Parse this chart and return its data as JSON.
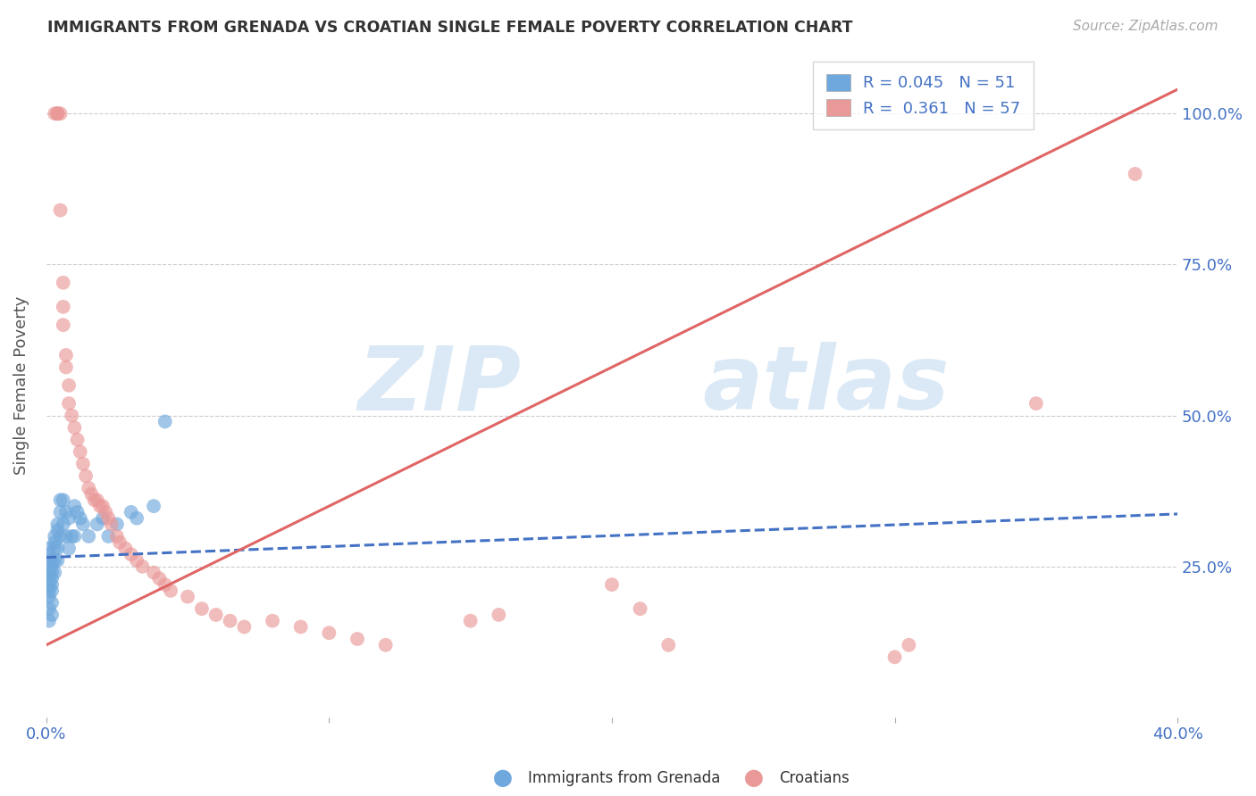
{
  "title": "IMMIGRANTS FROM GRENADA VS CROATIAN SINGLE FEMALE POVERTY CORRELATION CHART",
  "source": "Source: ZipAtlas.com",
  "ylabel": "Single Female Poverty",
  "xlim": [
    0.0,
    0.4
  ],
  "ylim": [
    0.0,
    1.1
  ],
  "color_blue": "#6fa8dc",
  "color_pink": "#ea9999",
  "color_blue_line": "#4472c4",
  "color_pink_line": "#e06666",
  "color_blue_text": "#4472c4",
  "watermark_zip": "ZIP",
  "watermark_atlas": "atlas",
  "blue_scatter_x": [
    0.001,
    0.001,
    0.001,
    0.001,
    0.001,
    0.001,
    0.001,
    0.001,
    0.001,
    0.001,
    0.002,
    0.002,
    0.002,
    0.002,
    0.002,
    0.002,
    0.002,
    0.002,
    0.003,
    0.003,
    0.003,
    0.003,
    0.003,
    0.004,
    0.004,
    0.004,
    0.004,
    0.005,
    0.005,
    0.005,
    0.006,
    0.006,
    0.007,
    0.007,
    0.008,
    0.008,
    0.009,
    0.01,
    0.01,
    0.011,
    0.012,
    0.013,
    0.015,
    0.018,
    0.02,
    0.022,
    0.025,
    0.03,
    0.032,
    0.038,
    0.042
  ],
  "blue_scatter_y": [
    0.26,
    0.27,
    0.28,
    0.24,
    0.23,
    0.22,
    0.21,
    0.2,
    0.18,
    0.16,
    0.26,
    0.25,
    0.24,
    0.23,
    0.22,
    0.21,
    0.19,
    0.17,
    0.3,
    0.29,
    0.28,
    0.26,
    0.24,
    0.32,
    0.31,
    0.28,
    0.26,
    0.36,
    0.34,
    0.3,
    0.36,
    0.32,
    0.34,
    0.3,
    0.33,
    0.28,
    0.3,
    0.35,
    0.3,
    0.34,
    0.33,
    0.32,
    0.3,
    0.32,
    0.33,
    0.3,
    0.32,
    0.34,
    0.33,
    0.35,
    0.49
  ],
  "pink_scatter_x": [
    0.003,
    0.004,
    0.004,
    0.004,
    0.005,
    0.005,
    0.006,
    0.006,
    0.006,
    0.007,
    0.007,
    0.008,
    0.008,
    0.009,
    0.01,
    0.011,
    0.012,
    0.013,
    0.014,
    0.015,
    0.016,
    0.017,
    0.018,
    0.019,
    0.02,
    0.021,
    0.022,
    0.023,
    0.025,
    0.026,
    0.028,
    0.03,
    0.032,
    0.034,
    0.038,
    0.04,
    0.042,
    0.044,
    0.05,
    0.055,
    0.06,
    0.065,
    0.07,
    0.08,
    0.09,
    0.1,
    0.11,
    0.12,
    0.15,
    0.16,
    0.2,
    0.21,
    0.22,
    0.3,
    0.305,
    0.35,
    0.385
  ],
  "pink_scatter_y": [
    1.0,
    1.0,
    1.0,
    1.0,
    1.0,
    0.84,
    0.72,
    0.68,
    0.65,
    0.6,
    0.58,
    0.55,
    0.52,
    0.5,
    0.48,
    0.46,
    0.44,
    0.42,
    0.4,
    0.38,
    0.37,
    0.36,
    0.36,
    0.35,
    0.35,
    0.34,
    0.33,
    0.32,
    0.3,
    0.29,
    0.28,
    0.27,
    0.26,
    0.25,
    0.24,
    0.23,
    0.22,
    0.21,
    0.2,
    0.18,
    0.17,
    0.16,
    0.15,
    0.16,
    0.15,
    0.14,
    0.13,
    0.12,
    0.16,
    0.17,
    0.22,
    0.18,
    0.12,
    0.1,
    0.12,
    0.52,
    0.9
  ],
  "blue_line_x": [
    0.0,
    0.4
  ],
  "blue_line_y_intercept": 0.265,
  "blue_line_slope": 0.18,
  "pink_line_x": [
    0.0,
    0.4
  ],
  "pink_line_y_intercept": 0.12,
  "pink_line_slope": 2.3
}
